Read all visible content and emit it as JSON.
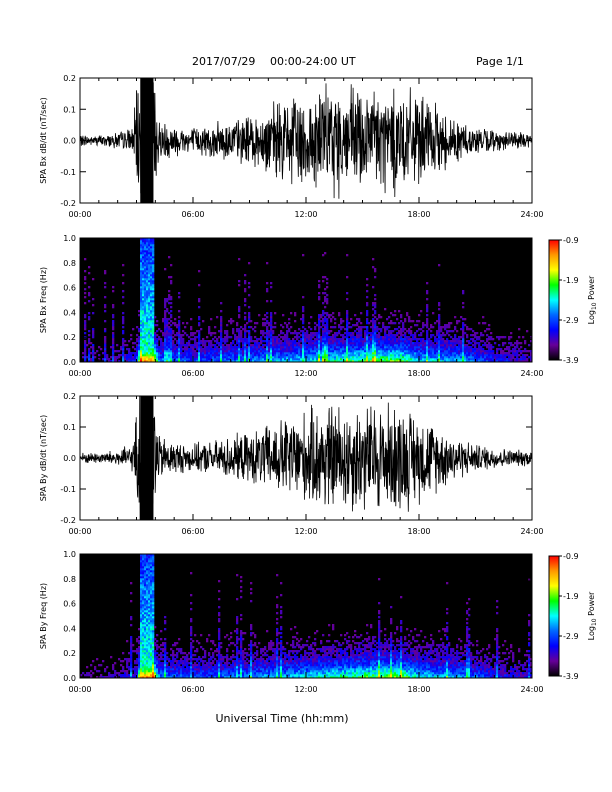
{
  "header": {
    "date": "2017/07/29",
    "range": "00:00-24:00 UT",
    "page": "Page 1/1"
  },
  "xlabel": "Universal Time (hh:mm)",
  "colorbar": {
    "label_main": "Log",
    "label_sub": "10",
    "label_tail": " Power",
    "ticks": [
      "-0.9",
      "-1.9",
      "-2.9",
      "-3.9"
    ],
    "colors": [
      "#ff0000",
      "#ff9900",
      "#ffff00",
      "#00ff00",
      "#00ffff",
      "#0066ff",
      "#0000ff",
      "#660099",
      "#000000"
    ]
  },
  "chart_data": [
    {
      "type": "line",
      "name": "bx-wave",
      "ylabel": "SPA Bx dB/dt (nT/sec)",
      "xlim": [
        0,
        24
      ],
      "ylim": [
        -0.2,
        0.2
      ],
      "x_ticks": [
        "00:00",
        "06:00",
        "12:00",
        "18:00",
        "24:00"
      ],
      "y_ticks": [
        "0.2",
        "0.1",
        "0.0",
        "-0.1",
        "-0.2"
      ],
      "envelope": {
        "time_h": [
          0,
          1,
          2,
          2.8,
          3.2,
          3.9,
          4.2,
          5,
          6,
          7,
          8,
          9,
          10,
          11,
          12,
          13,
          14,
          15,
          16,
          17,
          18,
          19,
          20,
          21,
          22,
          23,
          24
        ],
        "amplitude": [
          0.02,
          0.02,
          0.03,
          0.05,
          0.3,
          0.3,
          0.08,
          0.06,
          0.05,
          0.06,
          0.08,
          0.09,
          0.12,
          0.16,
          0.18,
          0.2,
          0.2,
          0.2,
          0.2,
          0.2,
          0.16,
          0.12,
          0.08,
          0.05,
          0.04,
          0.03,
          0.03
        ]
      }
    },
    {
      "type": "heatmap",
      "name": "bx-spectrogram",
      "ylabel": "SPA Bx Freq (Hz)",
      "xlim": [
        0,
        24
      ],
      "ylim": [
        0,
        1.0
      ],
      "zlim": [
        -3.9,
        -0.9
      ],
      "x_ticks": [
        "00:00",
        "06:00",
        "12:00",
        "18:00",
        "24:00"
      ],
      "y_ticks": [
        "1.0",
        "0.8",
        "0.6",
        "0.4",
        "0.2",
        "0.0"
      ]
    },
    {
      "type": "line",
      "name": "by-wave",
      "ylabel": "SPA By dB/dt (nT/sec)",
      "xlim": [
        0,
        24
      ],
      "ylim": [
        -0.2,
        0.2
      ],
      "x_ticks": [
        "00:00",
        "06:00",
        "12:00",
        "18:00",
        "24:00"
      ],
      "y_ticks": [
        "0.2",
        "0.1",
        "0.0",
        "-0.1",
        "-0.2"
      ],
      "envelope": {
        "time_h": [
          0,
          1,
          2,
          2.8,
          3.2,
          3.9,
          4.2,
          5,
          6,
          7,
          8,
          9,
          10,
          11,
          12,
          13,
          14,
          15,
          16,
          17,
          18,
          19,
          20,
          21,
          22,
          23,
          24
        ],
        "amplitude": [
          0.02,
          0.02,
          0.03,
          0.05,
          0.3,
          0.3,
          0.08,
          0.06,
          0.05,
          0.06,
          0.08,
          0.09,
          0.12,
          0.15,
          0.17,
          0.2,
          0.2,
          0.2,
          0.2,
          0.2,
          0.16,
          0.12,
          0.08,
          0.05,
          0.04,
          0.03,
          0.03
        ]
      }
    },
    {
      "type": "heatmap",
      "name": "by-spectrogram",
      "ylabel": "SPA By Freq (Hz)",
      "xlim": [
        0,
        24
      ],
      "ylim": [
        0,
        1.0
      ],
      "zlim": [
        -3.9,
        -0.9
      ],
      "x_ticks": [
        "00:00",
        "06:00",
        "12:00",
        "18:00",
        "24:00"
      ],
      "y_ticks": [
        "1.0",
        "0.8",
        "0.6",
        "0.4",
        "0.2",
        "0.0"
      ]
    }
  ]
}
